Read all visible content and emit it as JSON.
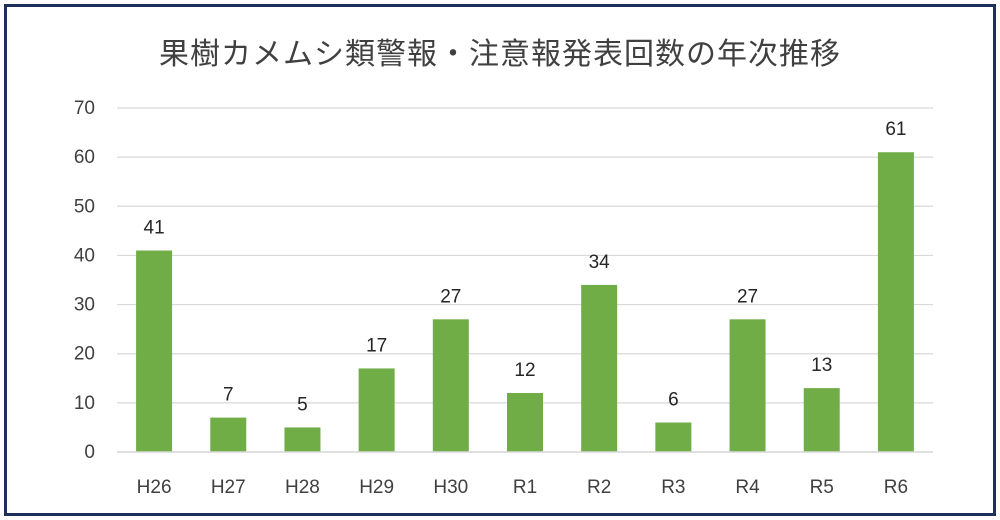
{
  "chart_data": {
    "type": "bar",
    "title": "果樹カメムシ類警報・注意報発表回数の年次推移",
    "categories": [
      "H26",
      "H27",
      "H28",
      "H29",
      "H30",
      "R1",
      "R2",
      "R3",
      "R4",
      "R5",
      "R6"
    ],
    "values": [
      41,
      7,
      5,
      17,
      27,
      12,
      34,
      6,
      27,
      13,
      61
    ],
    "ylim": [
      0,
      70
    ],
    "yticks": [
      0,
      10,
      20,
      30,
      40,
      50,
      60,
      70
    ],
    "grid": true,
    "legend": "none",
    "xlabel": "",
    "ylabel": "",
    "bar_color": "#70ad47",
    "grid_color": "#d9d9d9",
    "frame_color": "#1f2f5c"
  }
}
